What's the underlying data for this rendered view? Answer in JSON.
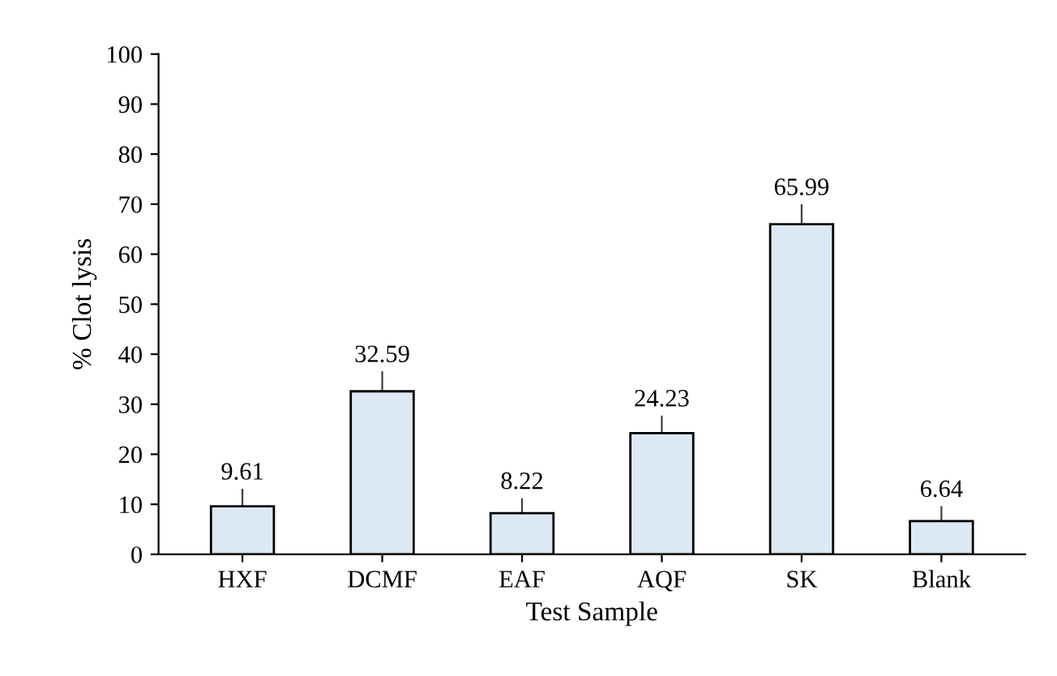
{
  "chart_data": {
    "type": "bar",
    "xlabel": "Test Sample",
    "ylabel": "% Clot lysis",
    "categories": [
      "HXF",
      "DCMF",
      "EAF",
      "AQF",
      "SK",
      "Blank"
    ],
    "values": [
      9.61,
      32.59,
      8.22,
      24.23,
      65.99,
      6.64
    ],
    "errors": [
      3.5,
      4,
      3,
      3.5,
      4,
      3
    ],
    "color": "#dce9f5",
    "data_labels": true,
    "ylim": [
      0,
      100
    ],
    "yticks": [
      0,
      10,
      20,
      30,
      40,
      50,
      60,
      70,
      80,
      90,
      100
    ],
    "grid": false
  }
}
